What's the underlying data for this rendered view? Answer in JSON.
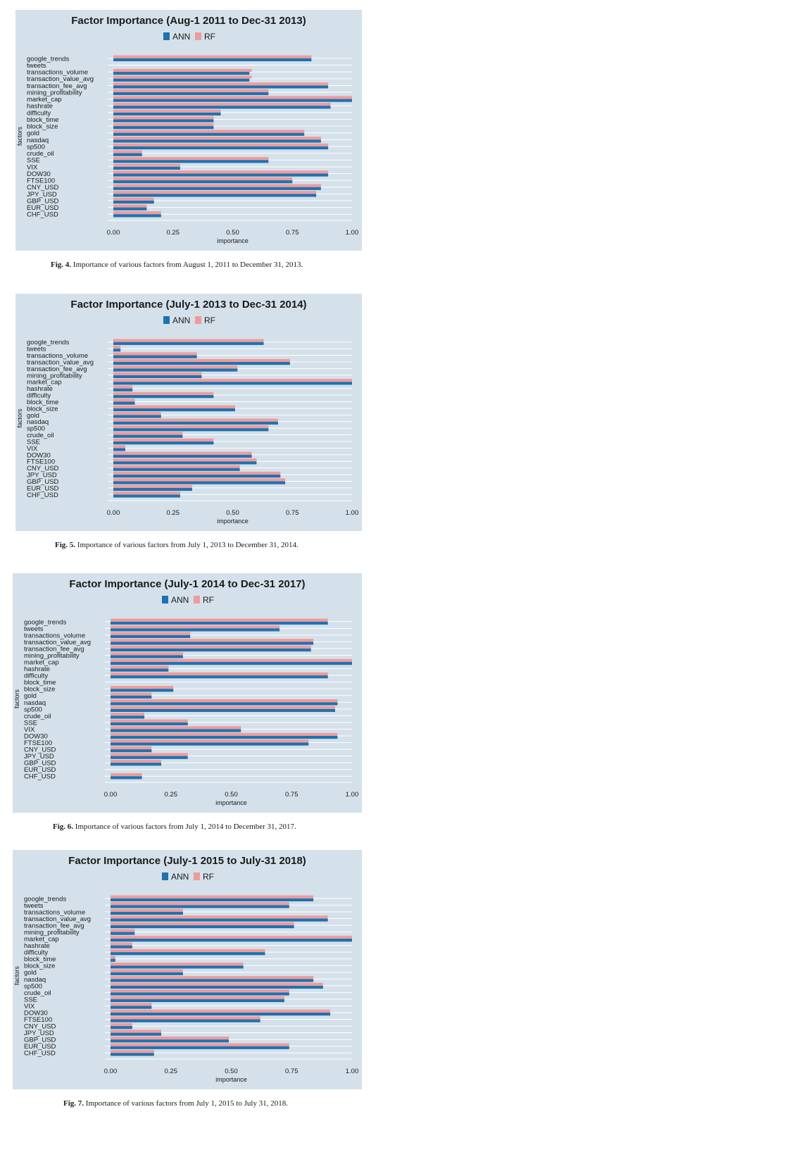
{
  "factors": [
    "google_trends",
    "tweets",
    "transactions_volume",
    "transaction_value_avg",
    "transaction_fee_avg",
    "mining_profitability",
    "market_cap",
    "hashrate",
    "difficulty",
    "block_time",
    "block_size",
    "gold",
    "nasdaq",
    "sp500",
    "crude_oil",
    "SSE",
    "VIX",
    "DOW30",
    "FTSE100",
    "CNY_USD",
    "JPY_USD",
    "GBP_USD",
    "EUR_USD",
    "CHF_USD"
  ],
  "colors": {
    "ANN": "#1f72b0",
    "RF": "#f29a9a",
    "panel": "#d4e1ea"
  },
  "figures": [
    {
      "caption_label": "Fig. 4.",
      "caption_text": "Importance of various factors from August 1, 2011 to December 31, 2013.",
      "chart_data": {
        "type": "bar",
        "orientation": "horizontal",
        "title": "Factor Importance (Aug-1 2011 to Dec-31 2013)",
        "xlabel": "importance",
        "ylabel": "factors",
        "xlim": [
          0,
          1
        ],
        "xticks": [
          "0.00",
          "0.25",
          "0.50",
          "0.75",
          "1.00"
        ],
        "legend": "top",
        "series": [
          {
            "name": "ANN",
            "values": [
              0.83,
              0,
              0.57,
              0.57,
              0.9,
              0.65,
              1.0,
              0.91,
              0.45,
              0.42,
              0.42,
              0.8,
              0.87,
              0.9,
              0.12,
              0.65,
              0.28,
              0.9,
              0.75,
              0.87,
              0.85,
              0.17,
              0.14,
              0.2
            ]
          },
          {
            "name": "RF",
            "values": [
              0.83,
              0,
              0.58,
              0.58,
              0.9,
              0.65,
              1.0,
              0.91,
              0.45,
              0.42,
              0.42,
              0.8,
              0.87,
              0.9,
              0.12,
              0.65,
              0.28,
              0.9,
              0.75,
              0.87,
              0.85,
              0.17,
              0.14,
              0.2
            ]
          }
        ]
      }
    },
    {
      "caption_label": "Fig. 5.",
      "caption_text": "Importance of various factors from July 1, 2013 to December 31, 2014.",
      "chart_data": {
        "type": "bar",
        "orientation": "horizontal",
        "title": "Factor Importance (July-1 2013 to Dec-31 2014)",
        "xlabel": "importance",
        "ylabel": "factors",
        "xlim": [
          0,
          1
        ],
        "xticks": [
          "0.00",
          "0.25",
          "0.50",
          "0.75",
          "1.00"
        ],
        "legend": "top",
        "series": [
          {
            "name": "ANN",
            "values": [
              0.63,
              0.03,
              0.35,
              0.74,
              0.52,
              0.37,
              1.0,
              0.08,
              0.42,
              0.09,
              0.51,
              0.2,
              0.69,
              0.65,
              0.29,
              0.42,
              0.05,
              0.58,
              0.6,
              0.53,
              0.7,
              0.72,
              0.33,
              0.28
            ]
          },
          {
            "name": "RF",
            "values": [
              0.63,
              0.03,
              0.35,
              0.74,
              0.52,
              0.37,
              1.0,
              0.08,
              0.42,
              0.09,
              0.51,
              0.2,
              0.69,
              0.65,
              0.29,
              0.42,
              0.05,
              0.58,
              0.6,
              0.53,
              0.7,
              0.72,
              0.33,
              0.28
            ]
          }
        ]
      }
    },
    {
      "caption_label": "Fig. 6.",
      "caption_text": "Importance of various factors from July 1, 2014 to December 31, 2017.",
      "chart_data": {
        "type": "bar",
        "orientation": "horizontal",
        "title": "Factor Importance (July-1 2014 to Dec-31 2017)",
        "xlabel": "importance",
        "ylabel": "factors",
        "xlim": [
          0,
          1
        ],
        "xticks": [
          "0.00",
          "0.25",
          "0.50",
          "0.75",
          "1.00"
        ],
        "legend": "top",
        "series": [
          {
            "name": "ANN",
            "values": [
              0.9,
              0.7,
              0.33,
              0.84,
              0.83,
              0.3,
              1.0,
              0.24,
              0.9,
              0,
              0.26,
              0.17,
              0.94,
              0.93,
              0.14,
              0.32,
              0.54,
              0.94,
              0.82,
              0.17,
              0.32,
              0.21,
              0,
              0.13
            ]
          },
          {
            "name": "RF",
            "values": [
              0.9,
              0.7,
              0.33,
              0.84,
              0.83,
              0.3,
              1.0,
              0.24,
              0.9,
              0,
              0.26,
              0.17,
              0.94,
              0.93,
              0.14,
              0.32,
              0.54,
              0.94,
              0.82,
              0.17,
              0.32,
              0.21,
              0,
              0.13
            ]
          }
        ]
      }
    },
    {
      "caption_label": "Fig. 7.",
      "caption_text": "Importance of various factors from July 1, 2015 to July 31, 2018.",
      "chart_data": {
        "type": "bar",
        "orientation": "horizontal",
        "title": "Factor Importance (July-1 2015 to July-31 2018)",
        "xlabel": "importance",
        "ylabel": "factors",
        "xlim": [
          0,
          1
        ],
        "xticks": [
          "0.00",
          "0.25",
          "0.50",
          "0.75",
          "1.00"
        ],
        "legend": "top",
        "series": [
          {
            "name": "ANN",
            "values": [
              0.84,
              0.74,
              0.3,
              0.9,
              0.76,
              0.1,
              1.0,
              0.09,
              0.64,
              0.02,
              0.55,
              0.3,
              0.84,
              0.88,
              0.74,
              0.72,
              0.17,
              0.91,
              0.62,
              0.09,
              0.21,
              0.49,
              0.74,
              0.18
            ]
          },
          {
            "name": "RF",
            "values": [
              0.84,
              0.74,
              0.3,
              0.9,
              0.76,
              0.1,
              1.0,
              0.09,
              0.64,
              0.02,
              0.55,
              0.3,
              0.84,
              0.88,
              0.74,
              0.72,
              0.17,
              0.91,
              0.62,
              0.09,
              0.21,
              0.49,
              0.74,
              0.18
            ]
          }
        ]
      }
    }
  ]
}
